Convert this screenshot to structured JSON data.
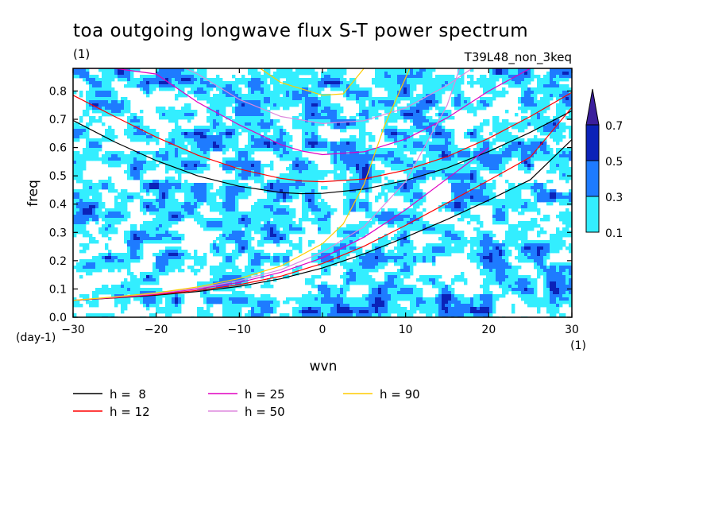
{
  "chart_data": {
    "type": "heatmap",
    "title": "toa outgoing longwave flux S-T power spectrum",
    "units_label": "(1)",
    "experiment": "T39L48_non_3keq",
    "xlabel": "wvn",
    "ylabel": "freq",
    "xunit": "(1)",
    "yunit": "(day-1)",
    "xlim": [
      -30,
      30
    ],
    "ylim": [
      0,
      0.88
    ],
    "xticks": [
      -30,
      -20,
      -10,
      0,
      10,
      20,
      30
    ],
    "yticks": [
      0.0,
      0.1,
      0.2,
      0.3,
      0.4,
      0.5,
      0.6,
      0.7,
      0.8
    ],
    "xtick_labels": [
      "−30",
      "−20",
      "−10",
      "0",
      "10",
      "20",
      "30"
    ],
    "ytick_labels": [
      "0.0",
      "0.1",
      "0.2",
      "0.3",
      "0.4",
      "0.5",
      "0.6",
      "0.7",
      "0.8"
    ],
    "colorbar": {
      "levels": [
        0.1,
        0.3,
        0.5,
        0.7
      ],
      "labels": [
        "0.1",
        "0.3",
        "0.5",
        "0.7"
      ],
      "colors": [
        "#33eeff",
        "#1e7bff",
        "#0b22b8",
        "#3b1f9c"
      ]
    },
    "field_peaks": [
      [
        -1.5,
        0.02,
        0.65
      ],
      [
        2.5,
        0.025,
        0.75
      ],
      [
        5.0,
        0.02,
        0.6
      ],
      [
        -10.0,
        0.06,
        0.5
      ],
      [
        -21.0,
        0.08,
        0.5
      ],
      [
        -7.0,
        0.05,
        0.45
      ],
      [
        -18.0,
        0.22,
        0.55
      ],
      [
        -25.0,
        0.36,
        0.45
      ],
      [
        -13.0,
        0.33,
        0.45
      ],
      [
        -10.5,
        0.45,
        0.5
      ],
      [
        -16.0,
        0.54,
        0.5
      ],
      [
        -25.0,
        0.56,
        0.4
      ],
      [
        -16.5,
        0.84,
        0.55
      ],
      [
        -26.5,
        0.79,
        0.45
      ],
      [
        -25.0,
        0.74,
        0.45
      ],
      [
        -8.0,
        0.72,
        0.4
      ],
      [
        5.5,
        0.19,
        0.5
      ],
      [
        0.5,
        0.21,
        0.45
      ],
      [
        14.0,
        0.6,
        0.5
      ],
      [
        14.0,
        0.24,
        0.4
      ],
      [
        19.0,
        0.42,
        0.5
      ],
      [
        27.5,
        0.67,
        0.45
      ],
      [
        23.5,
        0.84,
        0.4
      ],
      [
        10.0,
        0.09,
        0.45
      ],
      [
        3.5,
        0.3,
        0.4
      ],
      [
        -3.0,
        0.47,
        0.4
      ],
      [
        24.0,
        0.12,
        0.45
      ],
      [
        -28.0,
        0.18,
        0.4
      ],
      [
        -5.0,
        0.37,
        0.4
      ],
      [
        9.0,
        0.55,
        0.4
      ],
      [
        -12.0,
        0.12,
        0.45
      ],
      [
        -22.0,
        0.65,
        0.4
      ]
    ],
    "dispersion_curves": [
      {
        "name": "h =  8",
        "color": "#000000",
        "sym": "left",
        "x": [
          -30,
          -25,
          -20,
          -15,
          -10,
          -5,
          -2.5,
          0,
          5,
          10,
          15,
          20,
          25,
          30
        ],
        "y": [
          0.696,
          0.62,
          0.554,
          0.5,
          0.463,
          0.441,
          0.437,
          0.438,
          0.453,
          0.484,
          0.528,
          0.586,
          0.654,
          0.73
        ]
      },
      {
        "name": "h =  8",
        "color": "#000000",
        "sym": "right",
        "x": [
          -30,
          -25,
          -20,
          -15,
          -10,
          -5,
          0,
          5,
          10,
          15,
          20,
          25,
          30
        ],
        "y": [
          0.06,
          0.068,
          0.078,
          0.091,
          0.109,
          0.136,
          0.174,
          0.224,
          0.283,
          0.346,
          0.414,
          0.486,
          0.628
        ]
      },
      {
        "name": "h = 12",
        "color": "#ff0000",
        "sym": "left",
        "x": [
          -30,
          -25,
          -20,
          -15,
          -10,
          -5,
          -2.5,
          0,
          5,
          10,
          15,
          20,
          25,
          30
        ],
        "y": [
          0.785,
          0.71,
          0.637,
          0.573,
          0.524,
          0.491,
          0.482,
          0.479,
          0.489,
          0.52,
          0.568,
          0.633,
          0.71,
          0.795
        ]
      },
      {
        "name": "h = 12",
        "color": "#ff0000",
        "sym": "right",
        "x": [
          -30,
          -25,
          -20,
          -15,
          -10,
          -5,
          0,
          5,
          10,
          15,
          20,
          25,
          30
        ],
        "y": [
          0.06,
          0.069,
          0.08,
          0.095,
          0.115,
          0.145,
          0.19,
          0.251,
          0.325,
          0.404,
          0.484,
          0.566,
          0.742
        ]
      },
      {
        "name": "h = 25",
        "color": "#e000c0",
        "sym": "left",
        "x": [
          -30,
          -25,
          -20,
          -15,
          -10,
          -5,
          -2.5,
          0,
          5,
          10,
          15,
          20,
          25
        ],
        "y": [
          0.88,
          0.88,
          0.86,
          0.76,
          0.68,
          0.61,
          0.588,
          0.575,
          0.585,
          0.63,
          0.705,
          0.8,
          0.88
        ]
      },
      {
        "name": "h = 25",
        "color": "#e000c0",
        "sym": "right",
        "x": [
          -30,
          -25,
          -20,
          -15,
          -10,
          -5,
          0,
          5,
          10,
          15,
          20
        ],
        "y": [
          0.06,
          0.07,
          0.082,
          0.1,
          0.123,
          0.159,
          0.21,
          0.283,
          0.38,
          0.49,
          0.6
        ]
      },
      {
        "name": "h = 50",
        "color": "#dd88dd",
        "sym": "left",
        "x": [
          -16.5,
          -15,
          -10,
          -5,
          0,
          5,
          10,
          15,
          18
        ],
        "y": [
          0.88,
          0.86,
          0.77,
          0.71,
          0.685,
          0.695,
          0.74,
          0.82,
          0.88
        ]
      },
      {
        "name": "h = 50",
        "color": "#dd88dd",
        "sym": "right",
        "x": [
          -30,
          -25,
          -20,
          -15,
          -10,
          -5,
          0,
          5,
          10,
          15,
          16.5
        ],
        "y": [
          0.06,
          0.071,
          0.084,
          0.103,
          0.129,
          0.168,
          0.23,
          0.32,
          0.48,
          0.75,
          0.88
        ]
      },
      {
        "name": "h = 90",
        "color": "#ffcc00",
        "sym": "left",
        "x": [
          -7.5,
          -5,
          0,
          2.5,
          5
        ],
        "y": [
          0.88,
          0.83,
          0.785,
          0.79,
          0.88
        ]
      },
      {
        "name": "h = 90",
        "color": "#ffcc00",
        "sym": "right",
        "x": [
          -30,
          -25,
          -20,
          -15,
          -10,
          -5,
          0,
          2.5,
          5,
          7.5,
          10.5
        ],
        "y": [
          0.06,
          0.072,
          0.086,
          0.107,
          0.137,
          0.181,
          0.26,
          0.33,
          0.47,
          0.68,
          0.88
        ]
      }
    ]
  },
  "legend": [
    {
      "label": "h =  8",
      "color": "#000000"
    },
    {
      "label": "h = 12",
      "color": "#ff0000"
    },
    {
      "label": "h = 25",
      "color": "#e000c0"
    },
    {
      "label": "h = 50",
      "color": "#dd88dd"
    },
    {
      "label": "h = 90",
      "color": "#ffcc00"
    }
  ]
}
